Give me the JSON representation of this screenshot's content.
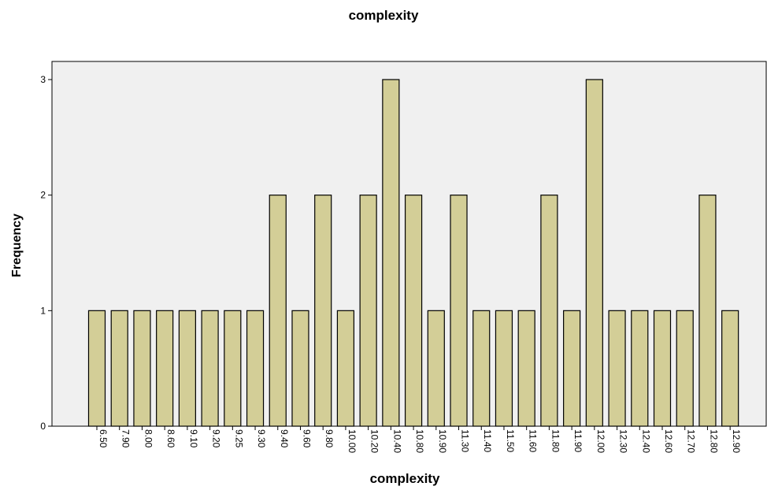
{
  "chart_data": {
    "type": "bar",
    "title": "complexity",
    "xlabel": "complexity",
    "ylabel": "Frequency",
    "ylim": [
      0,
      3
    ],
    "y_ticks": [
      "0",
      "1",
      "2",
      "3"
    ],
    "grid": false,
    "legend": "none",
    "categories": [
      "6.50",
      "7.90",
      "8.00",
      "8.60",
      "9.10",
      "9.20",
      "9.25",
      "9.30",
      "9.40",
      "9.60",
      "9.80",
      "10.00",
      "10.20",
      "10.40",
      "10.80",
      "10.90",
      "11.30",
      "11.40",
      "11.50",
      "11.60",
      "11.80",
      "11.90",
      "12.00",
      "12.30",
      "12.40",
      "12.60",
      "12.70",
      "12.80",
      "12.90"
    ],
    "values": [
      1,
      1,
      1,
      1,
      1,
      1,
      1,
      1,
      2,
      1,
      2,
      1,
      2,
      3,
      2,
      1,
      2,
      1,
      1,
      1,
      2,
      1,
      3,
      1,
      1,
      1,
      1,
      2,
      1
    ],
    "colors": {
      "bar_fill": "#D3CE97",
      "bar_stroke": "#000000",
      "plot_background": "#F0F0F0"
    }
  }
}
